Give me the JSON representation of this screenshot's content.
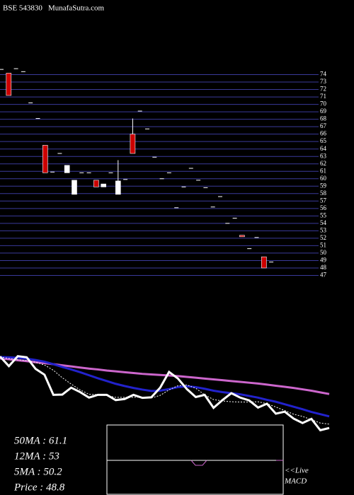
{
  "chart_data": [
    {
      "type": "candlestick",
      "title": "BSE 543830",
      "subtitle": "MunafaSutra.com",
      "ylim": [
        46,
        75
      ],
      "yticks": [
        47,
        48,
        49,
        50,
        51,
        52,
        53,
        54,
        55,
        56,
        57,
        58,
        59,
        60,
        61,
        62,
        63,
        64,
        65,
        66,
        67,
        68,
        69,
        70,
        71,
        72,
        73,
        74
      ],
      "grid": true,
      "up_color": "#ffffff",
      "down_color": "#cc0000",
      "grid_color": "#3a3a9a",
      "open": [
        74.7,
        74.2,
        74.8,
        74.4,
        70.2,
        68.1,
        64.5,
        60.9,
        63.4,
        60.8,
        57.9,
        60.8,
        60.8,
        59.8,
        58.9,
        60.8,
        57.9,
        59.9,
        66.0,
        69.1,
        66.7,
        62.9,
        60.0,
        60.8,
        56.1,
        58.9,
        61.4,
        59.8,
        58.8,
        56.2,
        57.6,
        54.0,
        54.7,
        52.4,
        50.6,
        52.1,
        49.5,
        48.8
      ],
      "high": [
        74.7,
        74.2,
        74.8,
        74.4,
        70.2,
        68.1,
        64.5,
        60.9,
        63.4,
        61.8,
        59.8,
        60.8,
        60.8,
        59.8,
        59.3,
        60.8,
        62.5,
        59.9,
        68.1,
        69.1,
        66.7,
        62.9,
        60.0,
        60.8,
        56.1,
        58.9,
        61.4,
        59.8,
        58.8,
        56.2,
        57.6,
        54.0,
        54.7,
        52.4,
        50.6,
        52.1,
        49.5,
        48.8
      ],
      "low": [
        74.7,
        71.2,
        74.8,
        74.4,
        70.2,
        68.1,
        60.8,
        60.9,
        63.4,
        60.8,
        57.9,
        60.8,
        60.8,
        58.9,
        58.9,
        60.8,
        57.9,
        59.9,
        63.4,
        69.1,
        66.7,
        62.9,
        60.0,
        60.8,
        56.1,
        58.9,
        61.4,
        59.8,
        58.8,
        56.2,
        57.6,
        54.0,
        54.7,
        52.2,
        50.6,
        52.1,
        48.0,
        48.8
      ],
      "close": [
        74.7,
        71.2,
        74.8,
        74.4,
        70.2,
        68.1,
        60.8,
        60.9,
        63.4,
        61.8,
        59.8,
        60.8,
        60.8,
        58.9,
        59.3,
        60.8,
        59.7,
        59.9,
        63.4,
        69.1,
        66.7,
        62.9,
        60.0,
        60.8,
        56.1,
        58.9,
        61.4,
        59.8,
        58.8,
        56.2,
        57.6,
        54.0,
        54.7,
        52.2,
        50.6,
        52.1,
        48.0,
        48.8
      ]
    },
    {
      "type": "line",
      "ylim": [
        44,
        76
      ],
      "series": [
        {
          "label": "50MA : 61.1",
          "color": "#cc66cc",
          "values": [
            74.0,
            73.7,
            73.3,
            73.0,
            72.6,
            72.3,
            71.9,
            71.5,
            71.1,
            70.7,
            70.3,
            70.0,
            69.6,
            69.3,
            69.0,
            68.7,
            68.4,
            68.2,
            68.0,
            67.8,
            67.6,
            67.3,
            67.0,
            66.7,
            66.4,
            66.1,
            65.8,
            65.5,
            65.2,
            64.9,
            64.5,
            64.1,
            63.7,
            63.3,
            62.8,
            62.3,
            61.7,
            61.1
          ]
        },
        {
          "label": "12MA : 53",
          "color": "#2222cc",
          "values": [
            74.5,
            74.4,
            74.2,
            73.9,
            73.4,
            72.8,
            71.9,
            70.9,
            70.0,
            69.0,
            67.9,
            66.8,
            65.8,
            64.8,
            64.0,
            63.3,
            62.7,
            62.2,
            62.3,
            62.9,
            63.6,
            63.9,
            63.6,
            63.0,
            62.3,
            61.8,
            61.4,
            61.0,
            60.4,
            59.8,
            59.0,
            58.3,
            57.4,
            56.5,
            55.6,
            54.6,
            53.8,
            53.0
          ]
        },
        {
          "label": "5MA : 50.2",
          "color": "#ffffff",
          "dashed": true,
          "values": [
            74.5,
            74.0,
            73.5,
            73.2,
            72.6,
            71.6,
            69.7,
            67.0,
            64.7,
            62.6,
            61.0,
            60.9,
            60.5,
            59.9,
            59.9,
            59.9,
            60.0,
            59.7,
            60.6,
            62.6,
            64.1,
            64.4,
            63.2,
            60.8,
            59.1,
            58.6,
            58.3,
            58.2,
            58.2,
            58.3,
            57.6,
            56.4,
            55.1,
            53.8,
            53.0,
            51.8,
            50.6,
            50.2
          ]
        },
        {
          "label": "Price   : 48.8",
          "color": "#ffffff",
          "values": [
            74.7,
            71.2,
            74.8,
            74.4,
            70.2,
            68.1,
            60.8,
            60.9,
            63.4,
            61.8,
            59.8,
            60.8,
            60.8,
            58.9,
            59.3,
            60.8,
            59.7,
            59.9,
            63.4,
            69.1,
            66.7,
            62.9,
            60.0,
            60.8,
            56.1,
            58.9,
            61.4,
            59.8,
            58.8,
            56.2,
            57.6,
            54.0,
            54.7,
            52.2,
            50.6,
            52.1,
            48.0,
            48.8
          ]
        }
      ]
    },
    {
      "type": "macd",
      "labels": [
        "<<Live",
        "MACD"
      ]
    }
  ]
}
